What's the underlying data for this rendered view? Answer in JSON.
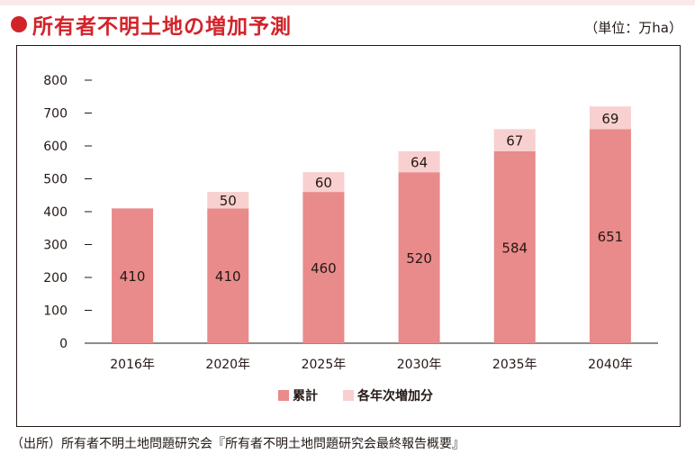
{
  "header": {
    "title": "所有者不明土地の増加予測",
    "unit": "（単位：万ha）"
  },
  "footer": {
    "source": "（出所）所有者不明土地問題研究会『所有者不明土地問題研究会最終報告概要』"
  },
  "colors": {
    "accent": "#d2232a",
    "cumulative": "#e98a8b",
    "increase": "#f7d0cf"
  },
  "chart_data": {
    "type": "bar",
    "stacked": true,
    "categories": [
      "2016年",
      "2020年",
      "2025年",
      "2030年",
      "2035年",
      "2040年"
    ],
    "series": [
      {
        "name": "累計",
        "values": [
          410,
          410,
          460,
          520,
          584,
          651
        ]
      },
      {
        "name": "各年次増加分",
        "values": [
          null,
          50,
          60,
          64,
          67,
          69
        ]
      }
    ],
    "ylim": [
      0,
      800
    ],
    "yticks": [
      0,
      100,
      200,
      300,
      400,
      500,
      600,
      700,
      800
    ],
    "grid": false,
    "legend": "bottom-center",
    "title": "",
    "xlabel": "",
    "ylabel": ""
  }
}
